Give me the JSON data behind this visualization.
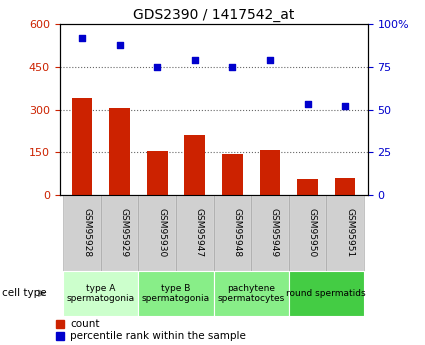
{
  "title": "GDS2390 / 1417542_at",
  "samples": [
    "GSM95928",
    "GSM95929",
    "GSM95930",
    "GSM95947",
    "GSM95948",
    "GSM95949",
    "GSM95950",
    "GSM95951"
  ],
  "counts": [
    340,
    307,
    155,
    210,
    143,
    158,
    55,
    60
  ],
  "percentiles": [
    92,
    88,
    75,
    79,
    75,
    79,
    53,
    52
  ],
  "ylim_left": [
    0,
    600
  ],
  "ylim_right": [
    0,
    100
  ],
  "yticks_left": [
    0,
    150,
    300,
    450,
    600
  ],
  "yticks_right": [
    0,
    25,
    50,
    75,
    100
  ],
  "bar_color": "#cc2200",
  "scatter_color": "#0000cc",
  "cell_types": [
    {
      "label": "type A\nspermatogonia",
      "span": [
        0,
        1
      ],
      "color": "#ccffcc"
    },
    {
      "label": "type B\nspermatogonia",
      "span": [
        2,
        3
      ],
      "color": "#88ee88"
    },
    {
      "label": "pachytene\nspermatocytes",
      "span": [
        4,
        5
      ],
      "color": "#88ee88"
    },
    {
      "label": "round spermatids",
      "span": [
        6,
        7
      ],
      "color": "#44cc44"
    }
  ],
  "legend_items": [
    {
      "label": "count",
      "color": "#cc2200"
    },
    {
      "label": "percentile rank within the sample",
      "color": "#0000cc"
    }
  ],
  "cell_type_label": "cell type",
  "sample_box_color": "#d0d0d0",
  "grid_color": "black",
  "grid_alpha": 0.6,
  "grid_linewidth": 0.8
}
